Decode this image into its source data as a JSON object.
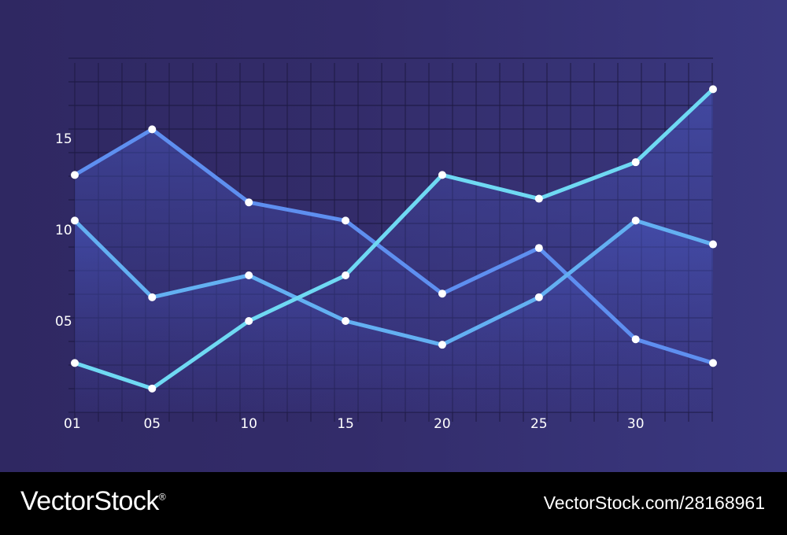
{
  "chart_data": {
    "type": "line",
    "title": "",
    "xlabel": "",
    "ylabel": "",
    "x": [
      1,
      5,
      10,
      15,
      20,
      25,
      30,
      34
    ],
    "x_tick_labels": [
      "01",
      "05",
      "10",
      "15",
      "20",
      "25",
      "30"
    ],
    "x_tick_values": [
      1,
      5,
      10,
      15,
      20,
      25,
      30
    ],
    "y_tick_labels": [
      "05",
      "10",
      "15"
    ],
    "y_tick_values": [
      5,
      10,
      15
    ],
    "xlim": [
      1,
      34
    ],
    "ylim": [
      0,
      20
    ],
    "grid": true,
    "legend": "none",
    "series": [
      {
        "values": [
          13,
          15.5,
          11.5,
          10.5,
          6.5,
          9,
          4,
          2.7
        ],
        "color": "#5e8ff0"
      },
      {
        "values": [
          10.5,
          6.3,
          7.5,
          5,
          3.7,
          6.3,
          10.5,
          9.2
        ],
        "color": "#63b0f2"
      },
      {
        "values": [
          2.7,
          1.3,
          5,
          7.5,
          13,
          11.7,
          13.7,
          17.7
        ],
        "color": "#6fd9f3"
      }
    ],
    "area_fill": {
      "colors": [
        "#4e63d6",
        "#4f79d8"
      ],
      "opacity": 0.5
    },
    "marker_color": "#ffffff"
  },
  "footer": {
    "brand": "VectorStock",
    "brand_registered": "®",
    "image_ref": "VectorStock.com/28168961"
  }
}
